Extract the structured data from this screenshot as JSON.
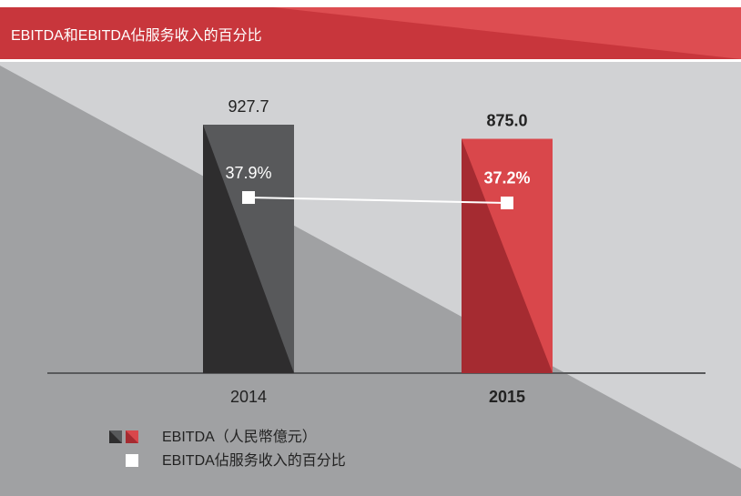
{
  "chart_data": {
    "type": "bar",
    "title": "EBITDA和EBITDA佔服务收入的百分比",
    "categories": [
      "2014",
      "2015"
    ],
    "series": [
      {
        "name": "EBITDA（人民幣億元）",
        "type": "bar",
        "colors": [
          "#58595b",
          "#d9474b"
        ],
        "shade_colors": [
          "#2e2d2e",
          "#a52b31"
        ],
        "values": [
          927.7,
          875
        ],
        "value_labels": [
          "927.7",
          "875.0"
        ]
      },
      {
        "name": "EBITDA佔服务收入的百分比",
        "type": "line",
        "color": "#ffffff",
        "values": [
          37.9,
          37.2
        ],
        "value_labels": [
          "37.9%",
          "37.2%"
        ]
      }
    ]
  }
}
